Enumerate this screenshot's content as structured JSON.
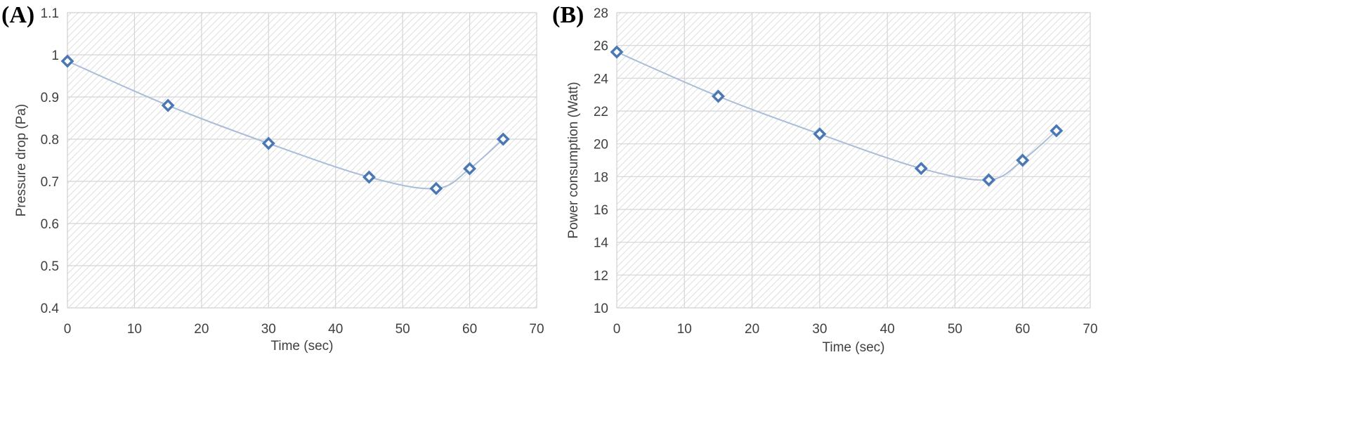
{
  "chart_data": [
    {
      "panel": "(A)",
      "type": "line",
      "title": "",
      "xlabel": "Time (sec)",
      "ylabel": "Pressure drop (Pa)",
      "xlim": [
        0,
        70
      ],
      "ylim": [
        0.4,
        1.1
      ],
      "xticks": [
        "0",
        "10",
        "20",
        "30",
        "40",
        "50",
        "60",
        "70"
      ],
      "yticks": [
        "0.4",
        "0.5",
        "0.6",
        "0.7",
        "0.8",
        "0.9",
        "1",
        "1.1"
      ],
      "grid": true,
      "series": [
        {
          "name": "Pressure drop",
          "x": [
            0,
            15,
            30,
            45,
            55,
            60,
            65
          ],
          "y": [
            0.985,
            0.88,
            0.79,
            0.71,
            0.683,
            0.73,
            0.8
          ]
        }
      ],
      "colors": {
        "line": "#a9bcd8",
        "marker": "#4a78b5",
        "hatch": "#dedede"
      }
    },
    {
      "panel": "(B)",
      "type": "line",
      "title": "",
      "xlabel": "Time (sec)",
      "ylabel": "Power consumption (Watt)",
      "xlim": [
        0,
        70
      ],
      "ylim": [
        10,
        28
      ],
      "xticks": [
        "0",
        "10",
        "20",
        "30",
        "40",
        "50",
        "60",
        "70"
      ],
      "yticks": [
        "10",
        "12",
        "14",
        "16",
        "18",
        "20",
        "22",
        "24",
        "26",
        "28"
      ],
      "grid": true,
      "series": [
        {
          "name": "Power consumption",
          "x": [
            0,
            15,
            30,
            45,
            55,
            60,
            65
          ],
          "y": [
            25.6,
            22.9,
            20.6,
            18.5,
            17.8,
            19.0,
            20.8
          ]
        }
      ],
      "colors": {
        "line": "#a9bcd8",
        "marker": "#4a78b5",
        "hatch": "#dedede"
      }
    }
  ]
}
